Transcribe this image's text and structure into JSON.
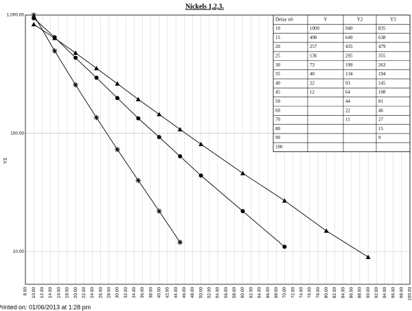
{
  "chart_data": {
    "type": "scatter",
    "title": "Nickels 1,2,3.",
    "y_label": "Y3",
    "footer": "Printed on: 01/06/2013 at 1:28 pm",
    "log_y": true,
    "grid": true,
    "color": "#000000",
    "xlim": [
      8,
      100
    ],
    "ylim": [
      5.3,
      1000
    ],
    "xticks": [
      {
        "value": 8,
        "label": "8.00"
      },
      {
        "value": 10,
        "label": "10.00"
      },
      {
        "value": 12,
        "label": "12.00"
      },
      {
        "value": 14,
        "label": "14.00"
      },
      {
        "value": 16,
        "label": "16.00"
      },
      {
        "value": 18,
        "label": "18.00"
      },
      {
        "value": 20,
        "label": "20.00"
      },
      {
        "value": 22,
        "label": "22.00"
      },
      {
        "value": 24,
        "label": "24.00"
      },
      {
        "value": 26,
        "label": "26.00"
      },
      {
        "value": 28,
        "label": "28.00"
      },
      {
        "value": 30,
        "label": "30.00"
      },
      {
        "value": 32,
        "label": "32.00"
      },
      {
        "value": 34,
        "label": "34.00"
      },
      {
        "value": 36,
        "label": "36.00"
      },
      {
        "value": 38,
        "label": "38.00"
      },
      {
        "value": 40,
        "label": "40.00"
      },
      {
        "value": 42,
        "label": "42.00"
      },
      {
        "value": 44,
        "label": "44.00"
      },
      {
        "value": 46,
        "label": "46.00"
      },
      {
        "value": 48,
        "label": "48.00"
      },
      {
        "value": 50,
        "label": "50.00"
      },
      {
        "value": 52,
        "label": "52.00"
      },
      {
        "value": 54,
        "label": "54.00"
      },
      {
        "value": 56,
        "label": "56.00"
      },
      {
        "value": 58,
        "label": "58.00"
      },
      {
        "value": 60,
        "label": "60.00"
      },
      {
        "value": 62,
        "label": "62.00"
      },
      {
        "value": 64,
        "label": "64.00"
      },
      {
        "value": 66,
        "label": "66.00"
      },
      {
        "value": 68,
        "label": "68.00"
      },
      {
        "value": 70,
        "label": "70.00"
      },
      {
        "value": 72,
        "label": "72.00"
      },
      {
        "value": 74,
        "label": "74.00"
      },
      {
        "value": 76,
        "label": "76.00"
      },
      {
        "value": 78,
        "label": "78.00"
      },
      {
        "value": 80,
        "label": "80.00"
      },
      {
        "value": 82,
        "label": "82.00"
      },
      {
        "value": 84,
        "label": "84.00"
      },
      {
        "value": 86,
        "label": "86.00"
      },
      {
        "value": 88,
        "label": "88.00"
      },
      {
        "value": 90,
        "label": "90.00"
      },
      {
        "value": 92,
        "label": "92.00"
      },
      {
        "value": 94,
        "label": "94.00"
      },
      {
        "value": 96,
        "label": "96.00"
      },
      {
        "value": 98,
        "label": "98.00"
      },
      {
        "value": 100,
        "label": "100.00"
      }
    ],
    "yticks": [
      {
        "value": 1000,
        "label": "1,000.00"
      },
      {
        "value": 100,
        "label": "100.00"
      },
      {
        "value": 10,
        "label": "10.00"
      }
    ],
    "series": [
      {
        "marker": "star",
        "x": [
          10,
          15,
          20,
          25,
          30,
          35,
          40,
          45
        ],
        "values": [
          1000,
          498,
          257,
          136,
          73,
          40,
          22,
          12
        ]
      },
      {
        "marker": "circle",
        "x": [
          10,
          15,
          20,
          25,
          30,
          35,
          40,
          45,
          50,
          60,
          70
        ],
        "values": [
          940,
          649,
          435,
          295,
          199,
          134,
          93,
          64,
          44,
          22,
          11
        ]
      },
      {
        "marker": "triangle",
        "x": [
          10,
          15,
          20,
          25,
          30,
          35,
          40,
          45,
          50,
          60,
          70,
          80,
          90
        ],
        "values": [
          835,
          638,
          479,
          355,
          263,
          194,
          145,
          108,
          81,
          46,
          27,
          15,
          9
        ]
      }
    ],
    "table": {
      "columns": [
        "Delay uS",
        "Y",
        "Y2",
        "Y3"
      ],
      "rows": [
        [
          10,
          1000,
          940,
          835
        ],
        [
          15,
          498,
          649,
          638
        ],
        [
          20,
          257,
          435,
          479
        ],
        [
          25,
          136,
          295,
          355
        ],
        [
          30,
          73,
          199,
          263
        ],
        [
          35,
          40,
          134,
          194
        ],
        [
          40,
          22,
          93,
          145
        ],
        [
          45,
          12,
          64,
          108
        ],
        [
          50,
          null,
          44,
          81
        ],
        [
          60,
          null,
          22,
          46
        ],
        [
          70,
          null,
          11,
          27
        ],
        [
          80,
          null,
          null,
          15
        ],
        [
          90,
          null,
          null,
          9
        ],
        [
          100,
          null,
          null,
          null
        ]
      ]
    }
  }
}
